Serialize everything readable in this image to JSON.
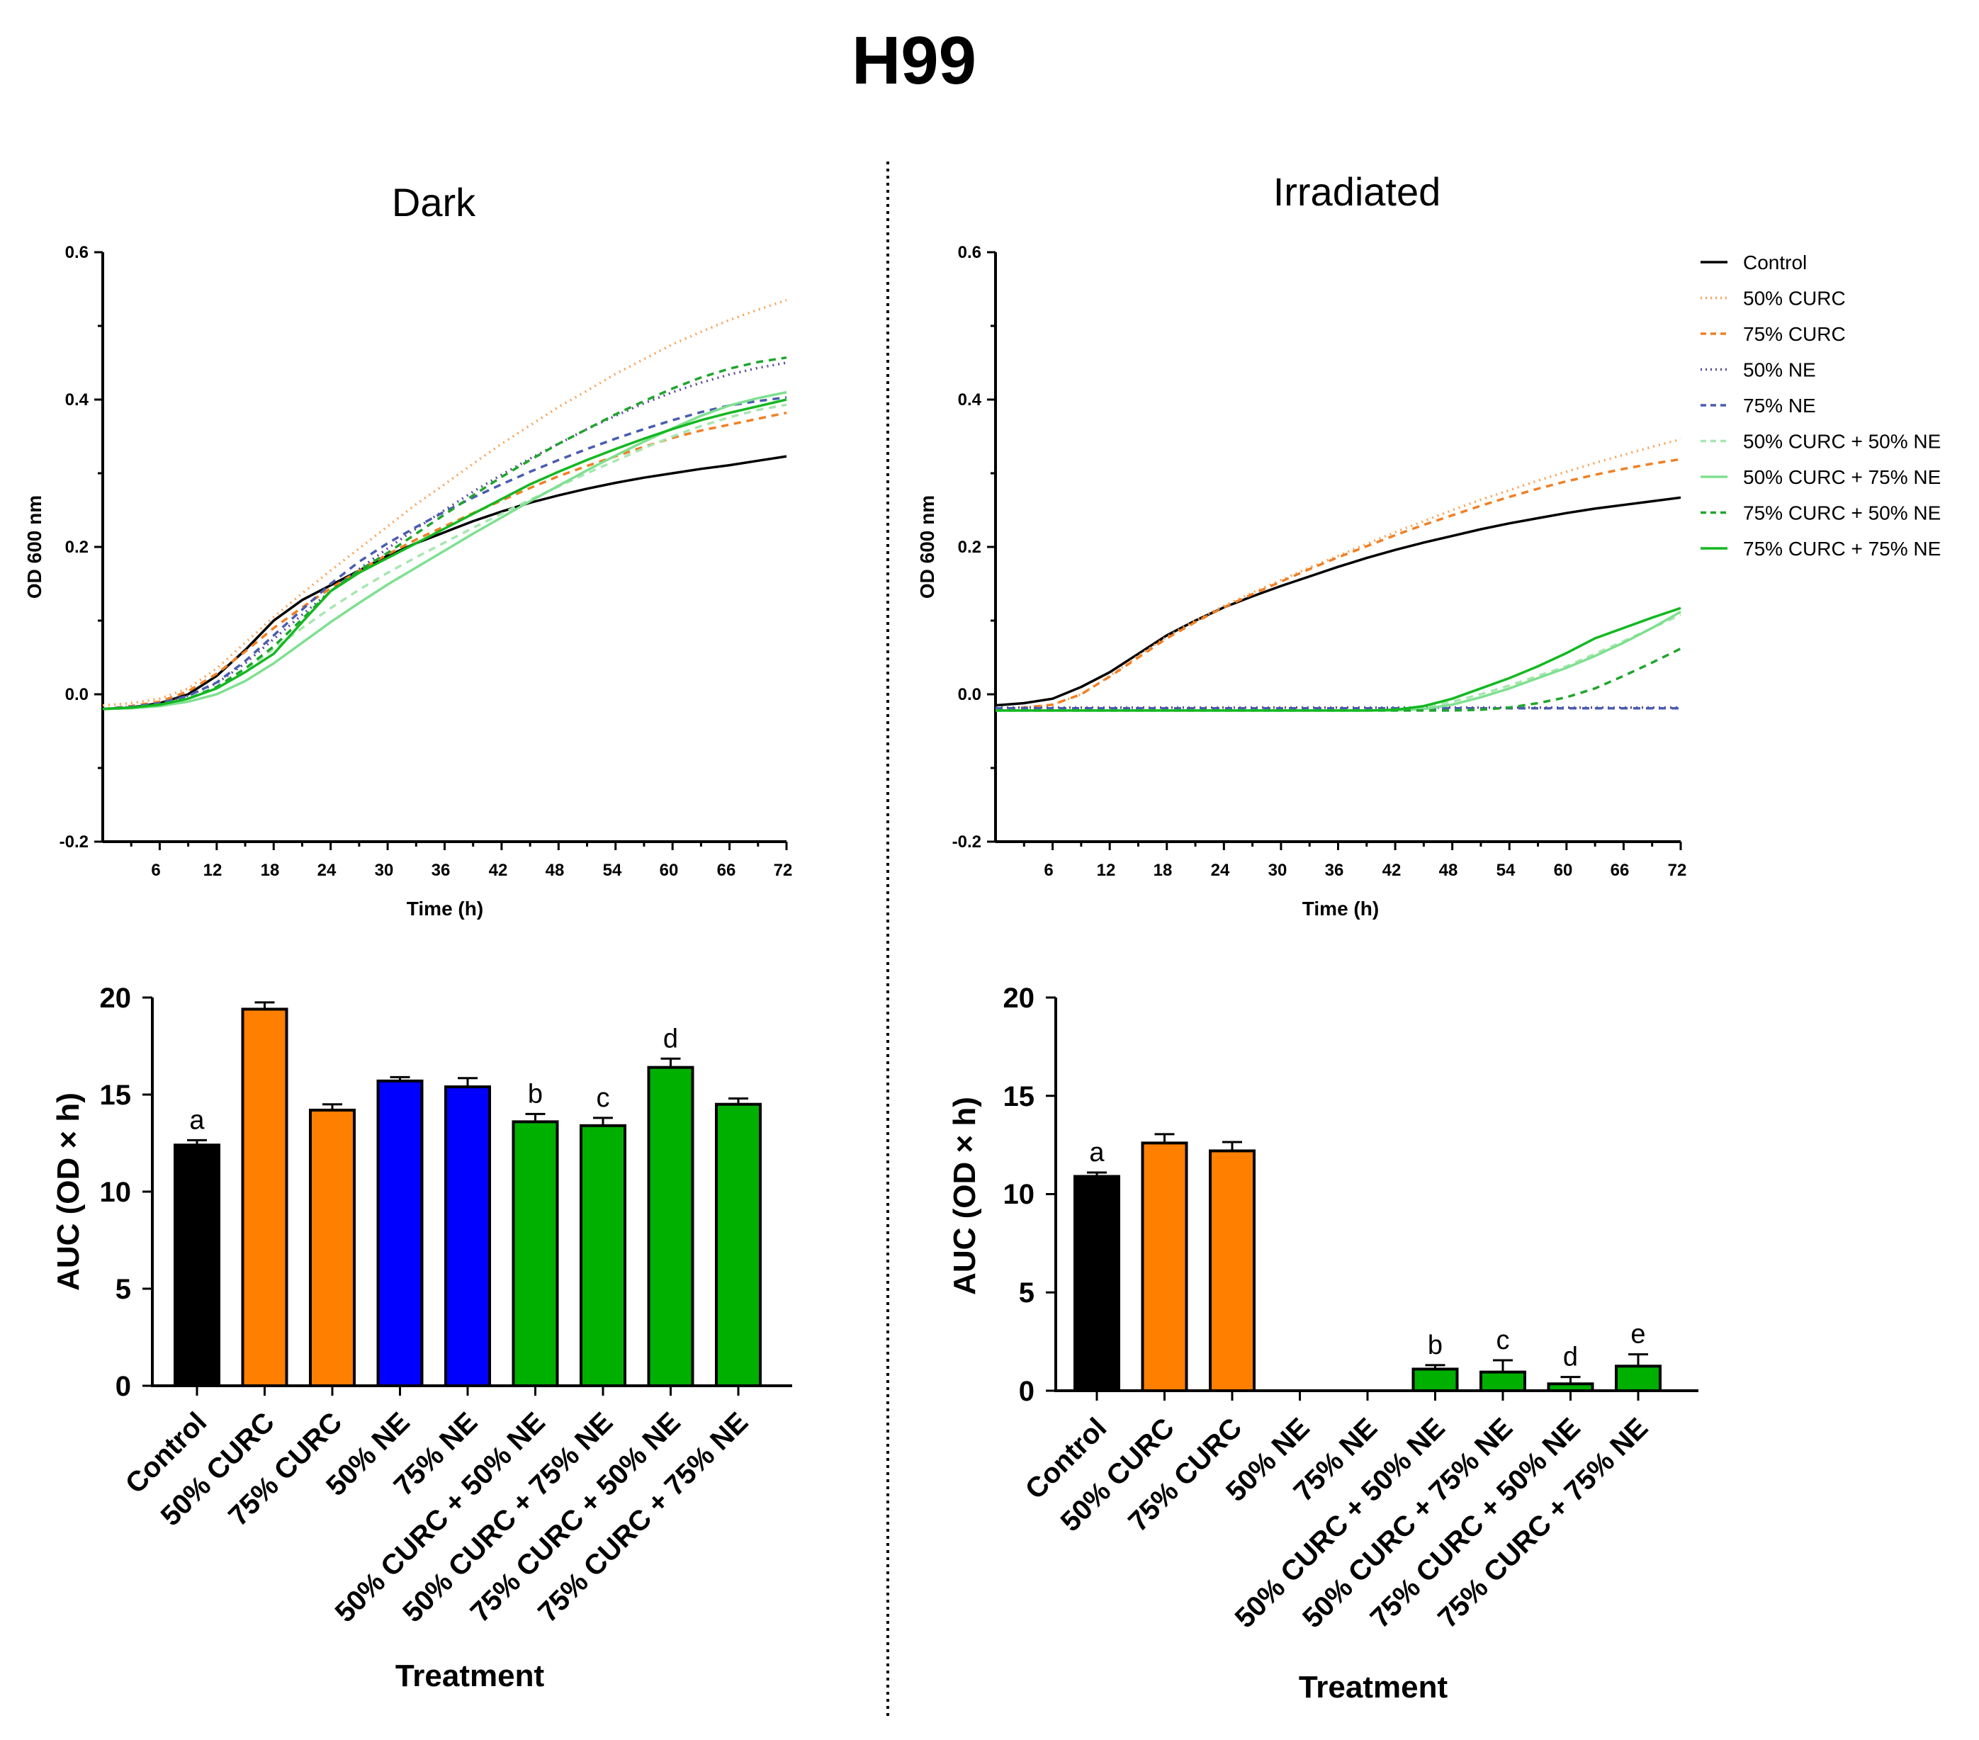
{
  "title": "H99",
  "colors": {
    "control": "#000000",
    "curc50": "#f5a45a",
    "curc75": "#f07f24",
    "ne50": "#5a4a9a",
    "ne75": "#4a5cb0",
    "c50n50": "#a8e6b0",
    "c50n75": "#7ee090",
    "c75n50": "#1fa52c",
    "c75n75": "#13b820",
    "bar_black": "#000000",
    "bar_orange": "#ff7f00",
    "bar_blue": "#0000ff",
    "bar_green": "#00b000"
  },
  "chart_data": [
    {
      "id": "dark_growth",
      "type": "line",
      "title": "Dark",
      "xlabel": "Time (h)",
      "ylabel": "OD 600 nm",
      "xlim": [
        0,
        72
      ],
      "ylim": [
        -0.2,
        0.6
      ],
      "xticks": [
        "6",
        "12",
        "18",
        "24",
        "30",
        "36",
        "42",
        "48",
        "54",
        "60",
        "66",
        "72"
      ],
      "yticks": [
        "0.6",
        "0.4",
        "0.2",
        "0.0",
        "-0.2"
      ],
      "x": [
        0,
        3,
        6,
        9,
        12,
        15,
        18,
        21,
        24,
        27,
        30,
        33,
        36,
        39,
        42,
        45,
        48,
        51,
        54,
        57,
        60,
        63,
        66,
        69,
        72
      ],
      "series": [
        {
          "name": "Control",
          "color_key": "control",
          "dash": "",
          "values": [
            -0.02,
            -0.018,
            -0.012,
            0.0,
            0.025,
            0.06,
            0.1,
            0.128,
            0.148,
            0.168,
            0.188,
            0.205,
            0.22,
            0.235,
            0.248,
            0.26,
            0.27,
            0.279,
            0.287,
            0.294,
            0.3,
            0.306,
            0.311,
            0.317,
            0.323
          ]
        },
        {
          "name": "50% CURC",
          "color_key": "curc50",
          "dash": "2,6",
          "values": [
            -0.015,
            -0.012,
            -0.006,
            0.008,
            0.035,
            0.07,
            0.105,
            0.137,
            0.168,
            0.198,
            0.228,
            0.258,
            0.285,
            0.313,
            0.34,
            0.365,
            0.39,
            0.412,
            0.435,
            0.455,
            0.475,
            0.492,
            0.508,
            0.522,
            0.535
          ]
        },
        {
          "name": "75% CURC",
          "color_key": "curc75",
          "dash": "10,8",
          "values": [
            -0.02,
            -0.016,
            -0.01,
            0.004,
            0.028,
            0.058,
            0.09,
            0.118,
            0.144,
            0.168,
            0.19,
            0.21,
            0.228,
            0.246,
            0.263,
            0.28,
            0.296,
            0.31,
            0.323,
            0.336,
            0.348,
            0.358,
            0.366,
            0.374,
            0.382
          ]
        },
        {
          "name": "50% NE",
          "color_key": "ne50",
          "dash": "2,6",
          "values": [
            -0.02,
            -0.017,
            -0.012,
            -0.002,
            0.015,
            0.042,
            0.075,
            0.108,
            0.14,
            0.17,
            0.198,
            0.225,
            0.25,
            0.275,
            0.298,
            0.32,
            0.34,
            0.36,
            0.378,
            0.395,
            0.41,
            0.423,
            0.434,
            0.443,
            0.45
          ]
        },
        {
          "name": "75% NE",
          "color_key": "ne75",
          "dash": "10,8",
          "values": [
            -0.02,
            -0.017,
            -0.012,
            -0.002,
            0.016,
            0.045,
            0.08,
            0.115,
            0.15,
            0.18,
            0.205,
            0.227,
            0.248,
            0.267,
            0.285,
            0.302,
            0.318,
            0.333,
            0.347,
            0.36,
            0.372,
            0.383,
            0.392,
            0.398,
            0.403
          ]
        },
        {
          "name": "50% CURC + 50% NE",
          "color_key": "c50n50",
          "dash": "10,8",
          "values": [
            -0.02,
            -0.018,
            -0.014,
            -0.006,
            0.008,
            0.032,
            0.062,
            0.09,
            0.117,
            0.142,
            0.165,
            0.186,
            0.206,
            0.226,
            0.245,
            0.264,
            0.282,
            0.3,
            0.317,
            0.334,
            0.35,
            0.364,
            0.376,
            0.386,
            0.393
          ]
        },
        {
          "name": "50% CURC + 75% NE",
          "color_key": "c50n75",
          "dash": "",
          "values": [
            -0.02,
            -0.019,
            -0.016,
            -0.01,
            0.0,
            0.018,
            0.042,
            0.07,
            0.098,
            0.124,
            0.149,
            0.172,
            0.195,
            0.218,
            0.24,
            0.262,
            0.283,
            0.304,
            0.324,
            0.343,
            0.361,
            0.378,
            0.392,
            0.402,
            0.41
          ]
        },
        {
          "name": "75% CURC + 50% NE",
          "color_key": "c75n50",
          "dash": "10,8",
          "values": [
            -0.02,
            -0.018,
            -0.014,
            -0.006,
            0.01,
            0.035,
            0.065,
            0.102,
            0.14,
            0.168,
            0.192,
            0.218,
            0.244,
            0.27,
            0.295,
            0.318,
            0.34,
            0.36,
            0.38,
            0.398,
            0.415,
            0.43,
            0.442,
            0.451,
            0.457
          ]
        },
        {
          "name": "75% CURC + 75% NE",
          "color_key": "c75n75",
          "dash": "",
          "values": [
            -0.02,
            -0.018,
            -0.014,
            -0.006,
            0.008,
            0.03,
            0.055,
            0.098,
            0.14,
            0.165,
            0.185,
            0.205,
            0.225,
            0.245,
            0.265,
            0.285,
            0.302,
            0.318,
            0.333,
            0.347,
            0.36,
            0.372,
            0.382,
            0.391,
            0.4
          ]
        }
      ]
    },
    {
      "id": "irradiated_growth",
      "type": "line",
      "title": "Irradiated",
      "xlabel": "Time (h)",
      "ylabel": "OD 600 nm",
      "xlim": [
        0,
        72
      ],
      "ylim": [
        -0.2,
        0.6
      ],
      "xticks": [
        "6",
        "12",
        "18",
        "24",
        "30",
        "36",
        "42",
        "48",
        "54",
        "60",
        "66",
        "72"
      ],
      "yticks": [
        "0.6",
        "0.4",
        "0.2",
        "0.0",
        "-0.2"
      ],
      "legend_position": "top-right",
      "x": [
        0,
        3,
        6,
        9,
        12,
        15,
        18,
        21,
        24,
        27,
        30,
        33,
        36,
        39,
        42,
        45,
        48,
        51,
        54,
        57,
        60,
        63,
        66,
        69,
        72
      ],
      "series": [
        {
          "name": "Control",
          "color_key": "control",
          "dash": "",
          "values": [
            -0.015,
            -0.012,
            -0.006,
            0.01,
            0.03,
            0.055,
            0.08,
            0.1,
            0.118,
            0.133,
            0.147,
            0.16,
            0.173,
            0.185,
            0.196,
            0.206,
            0.215,
            0.224,
            0.232,
            0.239,
            0.246,
            0.252,
            0.257,
            0.262,
            0.267
          ]
        },
        {
          "name": "50% CURC",
          "color_key": "curc50",
          "dash": "2,6",
          "values": [
            -0.02,
            -0.018,
            -0.014,
            0.0,
            0.025,
            0.052,
            0.078,
            0.1,
            0.12,
            0.138,
            0.155,
            0.172,
            0.188,
            0.204,
            0.22,
            0.235,
            0.25,
            0.264,
            0.277,
            0.29,
            0.302,
            0.314,
            0.325,
            0.336,
            0.346
          ]
        },
        {
          "name": "75% CURC",
          "color_key": "curc75",
          "dash": "10,8",
          "values": [
            -0.02,
            -0.018,
            -0.014,
            0.0,
            0.024,
            0.05,
            0.076,
            0.098,
            0.118,
            0.136,
            0.153,
            0.17,
            0.186,
            0.201,
            0.216,
            0.23,
            0.243,
            0.256,
            0.268,
            0.279,
            0.289,
            0.298,
            0.306,
            0.313,
            0.319
          ]
        },
        {
          "name": "50% NE",
          "color_key": "ne50",
          "dash": "2,6",
          "values": [
            -0.018,
            -0.018,
            -0.018,
            -0.018,
            -0.018,
            -0.018,
            -0.018,
            -0.018,
            -0.018,
            -0.018,
            -0.018,
            -0.018,
            -0.018,
            -0.018,
            -0.018,
            -0.018,
            -0.018,
            -0.018,
            -0.018,
            -0.018,
            -0.018,
            -0.018,
            -0.018,
            -0.018,
            -0.018
          ]
        },
        {
          "name": "75% NE",
          "color_key": "ne75",
          "dash": "10,8",
          "values": [
            -0.019,
            -0.019,
            -0.019,
            -0.019,
            -0.019,
            -0.019,
            -0.019,
            -0.019,
            -0.019,
            -0.019,
            -0.019,
            -0.019,
            -0.019,
            -0.019,
            -0.019,
            -0.019,
            -0.019,
            -0.019,
            -0.019,
            -0.019,
            -0.019,
            -0.019,
            -0.019,
            -0.019,
            -0.019
          ]
        },
        {
          "name": "50% CURC + 50% NE",
          "color_key": "c50n50",
          "dash": "10,8",
          "values": [
            -0.022,
            -0.022,
            -0.022,
            -0.022,
            -0.022,
            -0.022,
            -0.022,
            -0.022,
            -0.022,
            -0.022,
            -0.022,
            -0.022,
            -0.022,
            -0.022,
            -0.021,
            -0.018,
            -0.01,
            0.0,
            0.012,
            0.025,
            0.038,
            0.055,
            0.072,
            0.09,
            0.108
          ]
        },
        {
          "name": "50% CURC + 75% NE",
          "color_key": "c50n75",
          "dash": "",
          "values": [
            -0.022,
            -0.022,
            -0.022,
            -0.022,
            -0.022,
            -0.022,
            -0.022,
            -0.022,
            -0.022,
            -0.022,
            -0.022,
            -0.022,
            -0.022,
            -0.022,
            -0.022,
            -0.02,
            -0.014,
            -0.004,
            0.008,
            0.022,
            0.036,
            0.052,
            0.07,
            0.09,
            0.112
          ]
        },
        {
          "name": "75% CURC + 50% NE",
          "color_key": "c75n50",
          "dash": "10,8",
          "values": [
            -0.022,
            -0.022,
            -0.022,
            -0.022,
            -0.022,
            -0.022,
            -0.022,
            -0.022,
            -0.022,
            -0.022,
            -0.022,
            -0.022,
            -0.022,
            -0.022,
            -0.022,
            -0.022,
            -0.022,
            -0.021,
            -0.018,
            -0.012,
            -0.004,
            0.008,
            0.025,
            0.043,
            0.062
          ]
        },
        {
          "name": "75% CURC + 75% NE",
          "color_key": "c75n75",
          "dash": "",
          "values": [
            -0.022,
            -0.022,
            -0.022,
            -0.022,
            -0.022,
            -0.022,
            -0.022,
            -0.022,
            -0.022,
            -0.022,
            -0.022,
            -0.022,
            -0.022,
            -0.022,
            -0.021,
            -0.016,
            -0.006,
            0.008,
            0.022,
            0.038,
            0.056,
            0.076,
            0.09,
            0.104,
            0.117
          ]
        }
      ]
    },
    {
      "id": "dark_auc",
      "type": "bar",
      "xlabel": "Treatment",
      "ylabel": "AUC (OD × h)",
      "ylim": [
        0,
        20
      ],
      "yticks": [
        "20",
        "15",
        "10",
        "5",
        "0"
      ],
      "categories": [
        "Control",
        "50% CURC",
        "75% CURC",
        "50% NE",
        "75% NE",
        "50% CURC + 50% NE",
        "50% CURC + 75% NE",
        "75% CURC + 50% NE",
        "75% CURC + 75% NE"
      ],
      "values": [
        12.4,
        19.4,
        14.2,
        15.7,
        15.4,
        13.6,
        13.4,
        16.4,
        14.5
      ],
      "errors": [
        0.25,
        0.35,
        0.3,
        0.2,
        0.45,
        0.4,
        0.4,
        0.45,
        0.3
      ],
      "color_keys": [
        "bar_black",
        "bar_orange",
        "bar_orange",
        "bar_blue",
        "bar_blue",
        "bar_green",
        "bar_green",
        "bar_green",
        "bar_green"
      ],
      "letters": [
        "a",
        "",
        "",
        "",
        "",
        "b",
        "c",
        "d",
        ""
      ]
    },
    {
      "id": "irradiated_auc",
      "type": "bar",
      "xlabel": "Treatment",
      "ylabel": "AUC (OD × h)",
      "ylim": [
        0,
        20
      ],
      "yticks": [
        "20",
        "15",
        "10",
        "5",
        "0"
      ],
      "categories": [
        "Control",
        "50% CURC",
        "75% CURC",
        "50% NE",
        "75% NE",
        "50% CURC + 50% NE",
        "50% CURC + 75% NE",
        "75% CURC + 50% NE",
        "75% CURC + 75% NE"
      ],
      "values": [
        10.9,
        12.6,
        12.2,
        0,
        0,
        1.1,
        0.95,
        0.35,
        1.25
      ],
      "errors": [
        0.2,
        0.45,
        0.45,
        0,
        0,
        0.2,
        0.6,
        0.35,
        0.6
      ],
      "color_keys": [
        "bar_black",
        "bar_orange",
        "bar_orange",
        "bar_blue",
        "bar_blue",
        "bar_green",
        "bar_green",
        "bar_green",
        "bar_green"
      ],
      "letters": [
        "a",
        "",
        "",
        "",
        "",
        "b",
        "c",
        "d",
        "e"
      ]
    }
  ]
}
